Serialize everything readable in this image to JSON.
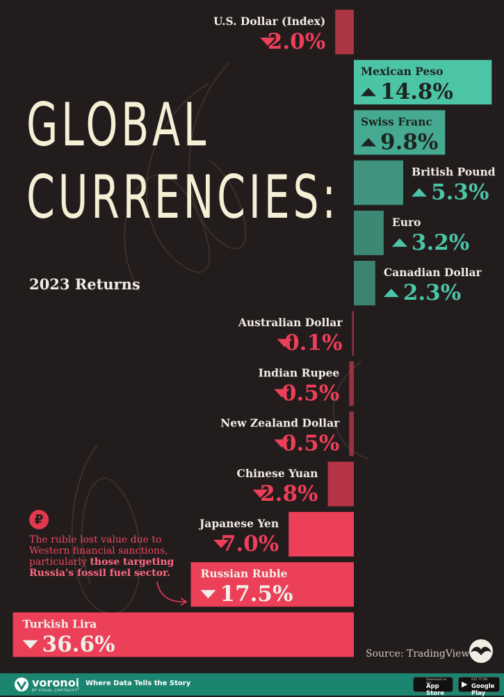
{
  "title_line1": "GLOBAL",
  "title_line2": "CURRENCIES:",
  "subtitle": "2023 Returns",
  "colors": {
    "background": "#231c1d",
    "positive": "#4cc4a6",
    "negative": "#ec3f58",
    "neutral": "#c0716f"
  },
  "chart_data": {
    "type": "bar",
    "orientation": "horizontal",
    "unit": "%",
    "categories": [
      "U.S. Dollar (Index)",
      "Mexican Peso",
      "Swiss Franc",
      "British Pound",
      "Euro",
      "Canadian Dollar",
      "Australian Dollar",
      "Indian Rupee",
      "New Zealand Dollar",
      "Chinese Yuan",
      "Japanese Yen",
      "Russian Ruble",
      "Turkish Lira"
    ],
    "values": [
      -2.0,
      14.8,
      9.8,
      5.3,
      3.2,
      2.3,
      -0.1,
      -0.5,
      -0.5,
      -2.8,
      -7.0,
      -17.5,
      -36.6
    ],
    "value_labels": [
      "2.0%",
      "14.8%",
      "9.8%",
      "5.3%",
      "3.2%",
      "2.3%",
      "0.1%",
      "0.5%",
      "0.5%",
      "2.8%",
      "7.0%",
      "17.5%",
      "36.6%"
    ],
    "title": "GLOBAL CURRENCIES:",
    "subtitle": "2023 Returns",
    "grid": false
  },
  "note": {
    "icon": "ruble-icon",
    "text_plain": "The ruble lost value due to Western financial sanctions, particularly ",
    "text_bold": "those targeting Russia's fossil fuel sector."
  },
  "source": "Source: TradingView",
  "footer": {
    "brand": "voronoi",
    "brand_sub": "BY VISUAL CAPITALIST",
    "tagline": "Where Data Tells the Story",
    "appstore_small": "Download on the",
    "appstore_name": "App Store",
    "gplay_small": "GET IT ON",
    "gplay_name": "Google Play"
  }
}
